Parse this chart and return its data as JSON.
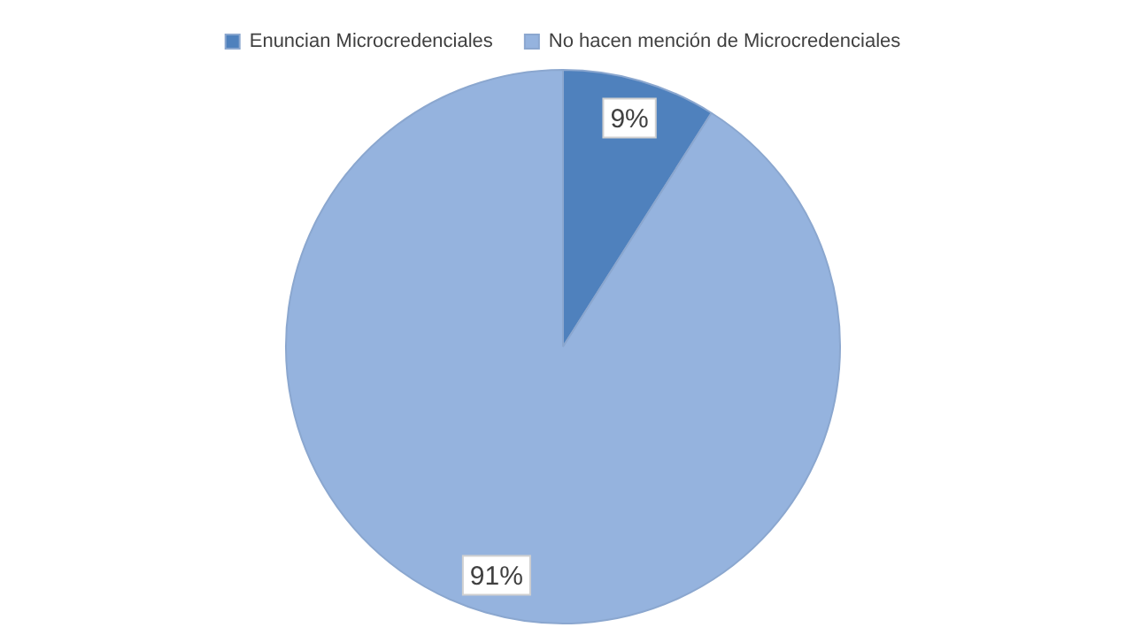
{
  "chart_data": {
    "type": "pie",
    "categories": [
      "Enuncian Microcredenciales",
      "No hacen mención de Microcredenciales"
    ],
    "values": [
      9,
      91
    ],
    "colors": [
      "#4f81bd",
      "#95b3de"
    ],
    "value_labels": [
      "9%",
      "91%"
    ],
    "legend": "top"
  }
}
